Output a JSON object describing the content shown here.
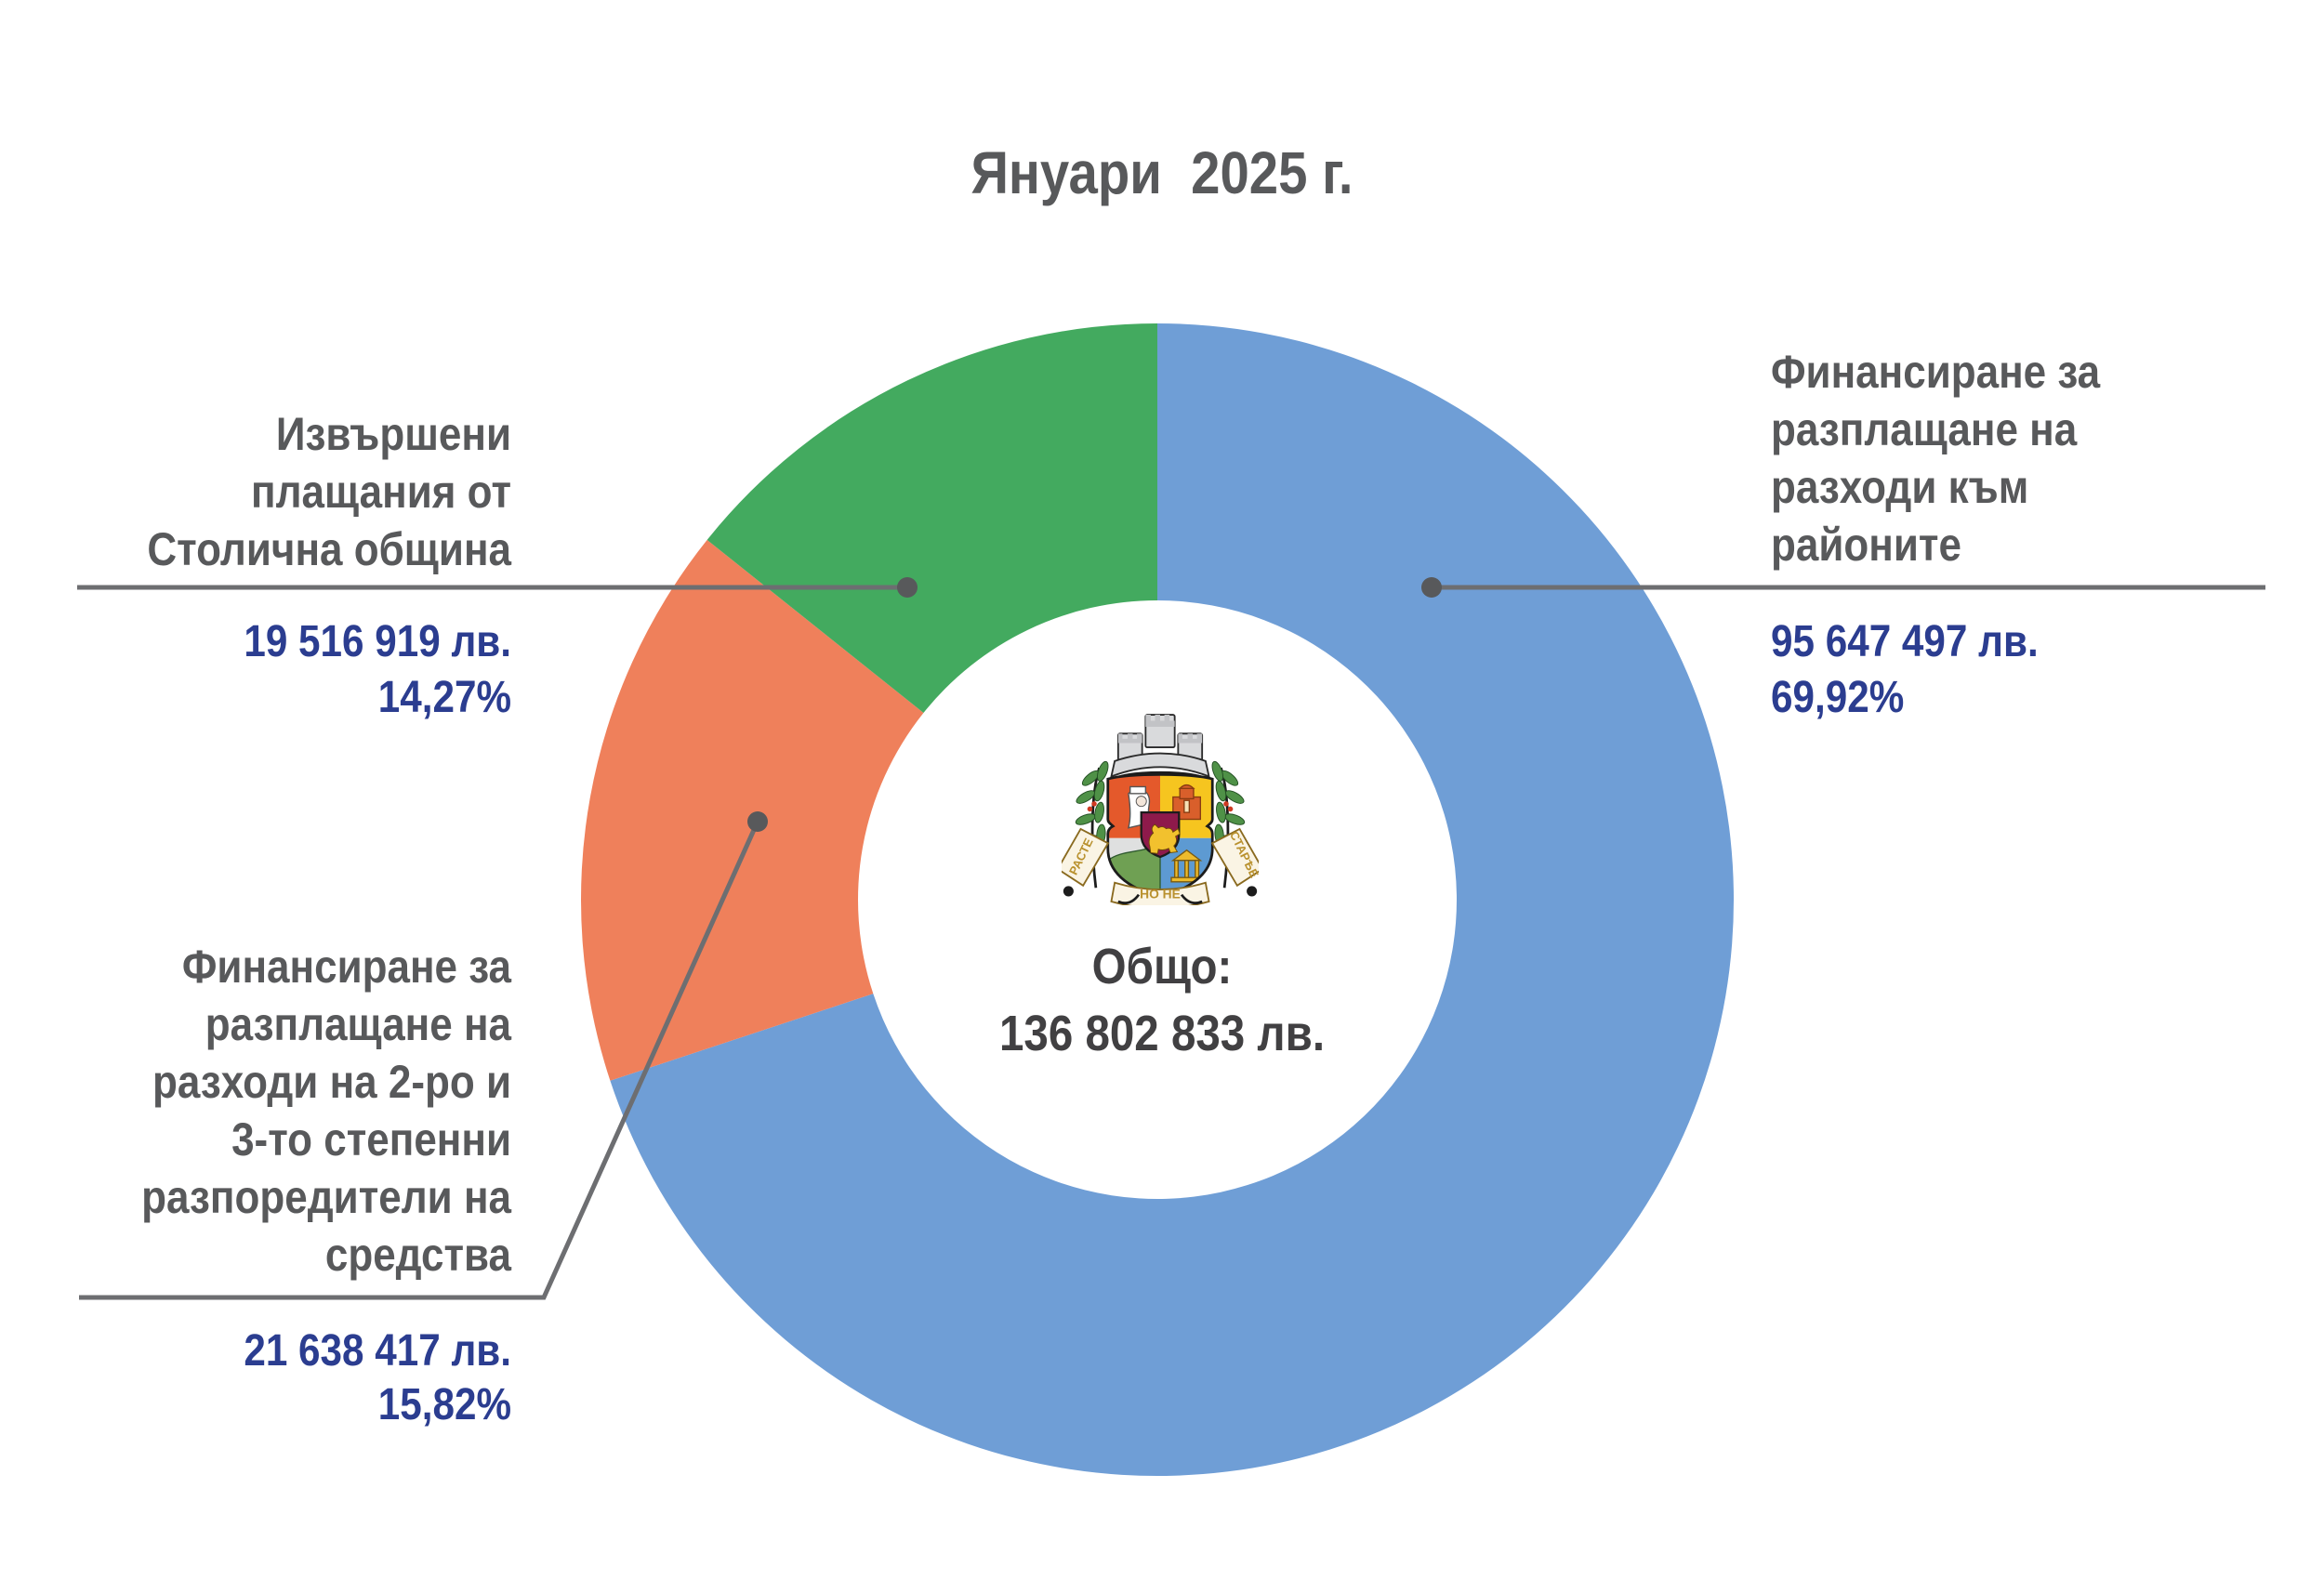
{
  "title": "Януари  2025 г.",
  "center": {
    "label": "Общо:",
    "total_label": "136 802 833 лв.",
    "combined": "Общо:\n136 802 833 лв."
  },
  "chart_data": {
    "type": "pie",
    "style": "donut",
    "title": "Януари 2025 г.",
    "center_label": "Общо: 136 802 833 лв.",
    "total_lv": 136802833,
    "start_angle_deg": 0,
    "direction": "clockwise",
    "inner_radius_ratio": 0.52,
    "legend_position": "callout-labels",
    "segments": [
      {
        "name": "Финансиране за разплащане на разходи към районите",
        "value_lv": 95647497,
        "value_label": "95 647 497 лв.",
        "percent": 69.92,
        "percent_label": "69,92%",
        "color": "#6f9ed6"
      },
      {
        "name": "Финансиране за разплащане на разходи на 2-ро и 3-то степенни разпоредители на средства",
        "value_lv": 21638417,
        "value_label": "21 638 417 лв.",
        "percent": 15.82,
        "percent_label": "15,82%",
        "color": "#ef805b"
      },
      {
        "name": "Извършени плащания от Столична община",
        "value_lv": 19516919,
        "value_label": "19 516 919 лв.",
        "percent": 14.27,
        "percent_label": "14,27%",
        "color": "#43aa5f"
      }
    ]
  },
  "labels": {
    "right": {
      "text": "Финансиране за\nразплащане на\nразходи към\nрайоните",
      "values": "95 647 497 лв.\n69,92%"
    },
    "left_top": {
      "text": "Извършени\nплащания от\nСтолична община",
      "values": "19 516 919 лв.\n14,27%"
    },
    "left_bottom": {
      "text": "Финансиране за\nразплащане на\nразходи на 2-ро и\n3-то степенни\nразпоредители на\nсредства",
      "values": "21 638 417 лв.\n15,82%"
    }
  },
  "coat_of_arms": {
    "motto_left": "РАСТЕ",
    "motto_center": "НО НЕ",
    "motto_right": "СТАРѢЕ"
  },
  "colors": {
    "segment_blue": "#6f9ed6",
    "segment_orange": "#ef805b",
    "segment_green": "#43aa5f",
    "label_gray": "#58595b",
    "value_navy": "#2b3d90",
    "leader_line": "#6d6e71",
    "center_text": "#414042"
  }
}
